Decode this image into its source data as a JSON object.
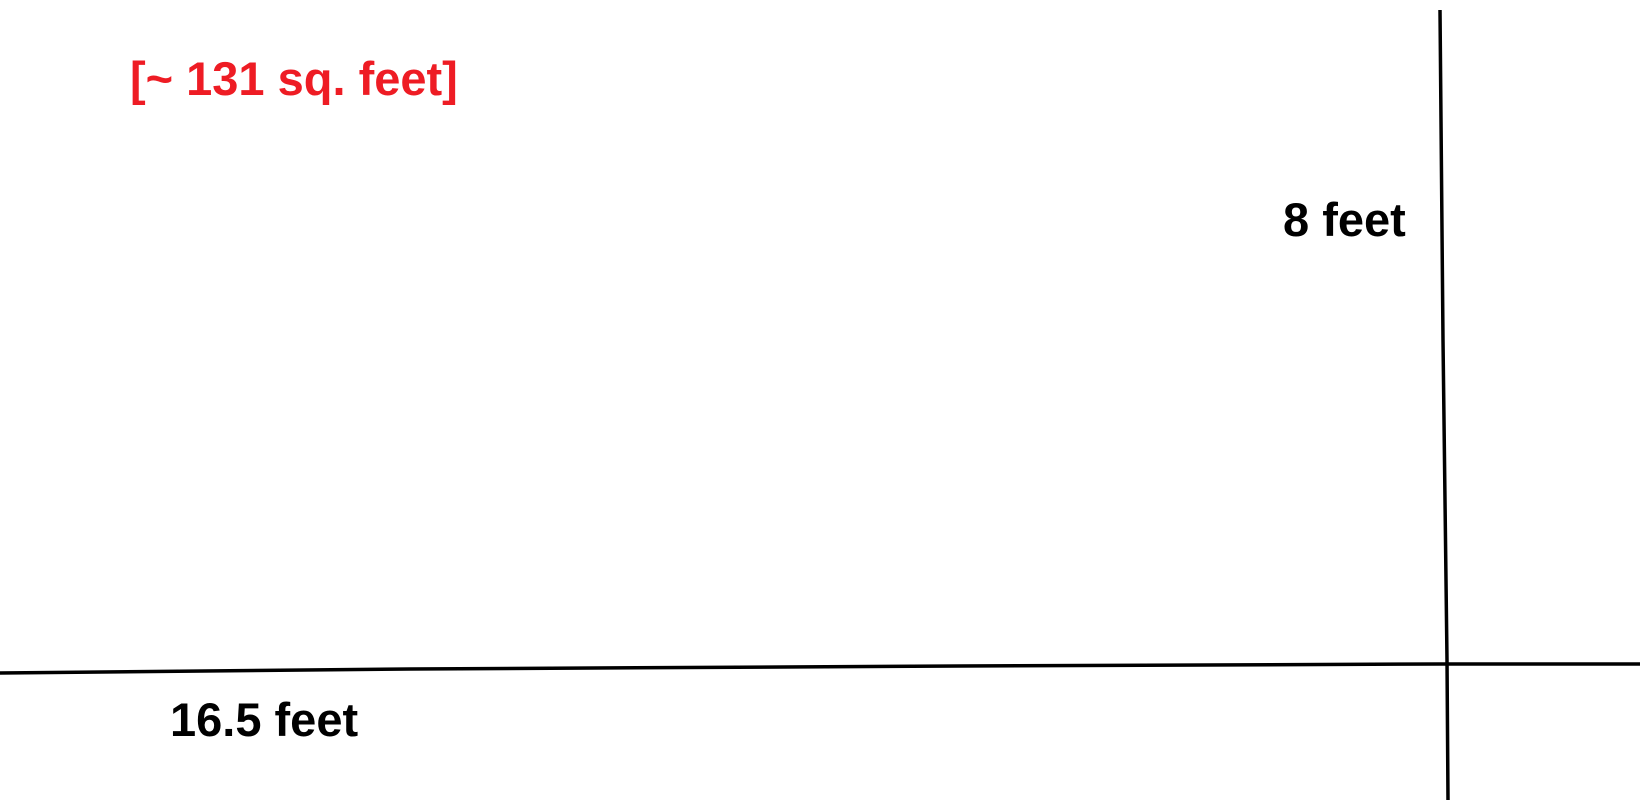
{
  "labels": {
    "area": "[~ 131 sq. feet]",
    "height": "8 feet",
    "width": "16.5 feet"
  },
  "colors": {
    "area_text": "#ee1c24",
    "dimension_text": "#000000",
    "lines": "#000000",
    "background": "#ffffff"
  }
}
